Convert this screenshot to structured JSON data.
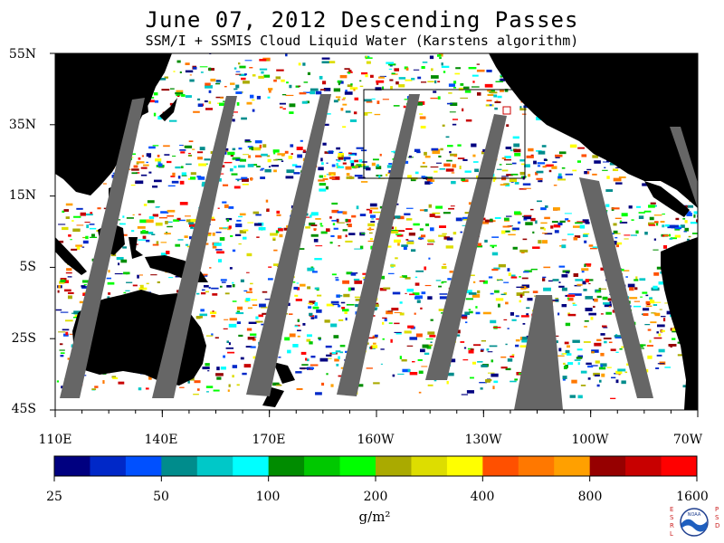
{
  "header": {
    "title": "June 07, 2012  Descending Passes",
    "subtitle": "SSM/I + SSMIS Cloud Liquid Water (Karstens algorithm)"
  },
  "map": {
    "lat_labels": [
      "55N",
      "35N",
      "15N",
      "5S",
      "25S",
      "45S"
    ],
    "lon_labels": [
      "110E",
      "140E",
      "170E",
      "160W",
      "130W",
      "100W",
      "70W"
    ],
    "colors": {
      "land": "#000000",
      "no_data_swath_gap": "#666666",
      "clear_ocean": "#ffffff",
      "grid": "#000000"
    }
  },
  "colorbar": {
    "colors": [
      "#000080",
      "#0028c8",
      "#0050ff",
      "#008c8c",
      "#00c8c8",
      "#00ffff",
      "#008c00",
      "#00c800",
      "#00ff00",
      "#aaaa00",
      "#dddd00",
      "#ffff00",
      "#ff5000",
      "#ff7800",
      "#ffa000",
      "#960000",
      "#c80000",
      "#ff0000"
    ],
    "tick_labels": [
      "25",
      "50",
      "100",
      "200",
      "400",
      "800",
      "1600"
    ],
    "unit": "g/m²"
  },
  "logo": {
    "left_letters": "ESRL",
    "center_text": "NOAA",
    "right_letters": "PSD"
  }
}
